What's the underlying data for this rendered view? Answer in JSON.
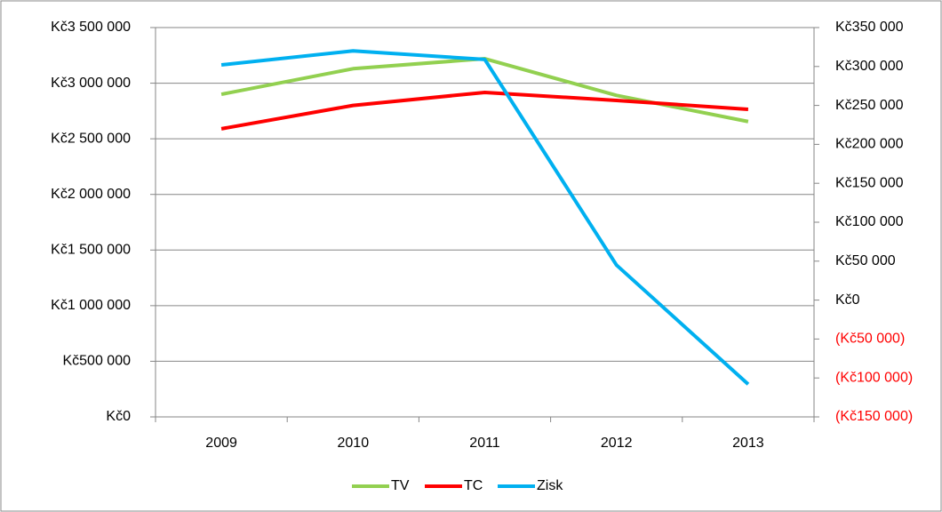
{
  "chart_data": {
    "type": "line",
    "categories": [
      "2009",
      "2010",
      "2011",
      "2012",
      "2013"
    ],
    "series": [
      {
        "name": "TV",
        "color": "#92d050",
        "values": [
          2900000,
          3130000,
          3220000,
          2890000,
          2655000
        ]
      },
      {
        "name": "TC",
        "color": "#ff0000",
        "values": [
          2590000,
          2800000,
          2917000,
          2845000,
          2765000
        ]
      },
      {
        "name": "Zisk",
        "color": "#00b0f0",
        "axis": "y2",
        "values": [
          302000,
          320000,
          309000,
          45000,
          -108000
        ]
      }
    ],
    "ylim": [
      0,
      3500000
    ],
    "yticks": [
      {
        "value": 0,
        "label": "Kč0"
      },
      {
        "value": 500000,
        "label": "Kč500 000"
      },
      {
        "value": 1000000,
        "label": "Kč1 000 000"
      },
      {
        "value": 1500000,
        "label": "Kč1 500 000"
      },
      {
        "value": 2000000,
        "label": "Kč2 000 000"
      },
      {
        "value": 2500000,
        "label": "Kč2 500 000"
      },
      {
        "value": 3000000,
        "label": "Kč3 000 000"
      },
      {
        "value": 3500000,
        "label": "Kč3 500 000"
      }
    ],
    "y2lim": [
      -150000,
      350000
    ],
    "y2ticks": [
      {
        "value": -150000,
        "label": "(Kč150 000)"
      },
      {
        "value": -100000,
        "label": "(Kč100 000)"
      },
      {
        "value": -50000,
        "label": "(Kč50 000)"
      },
      {
        "value": 0,
        "label": "Kč0"
      },
      {
        "value": 50000,
        "label": "Kč50 000"
      },
      {
        "value": 100000,
        "label": "Kč100 000"
      },
      {
        "value": 150000,
        "label": "Kč150 000"
      },
      {
        "value": 200000,
        "label": "Kč200 000"
      },
      {
        "value": 250000,
        "label": "Kč250 000"
      },
      {
        "value": 300000,
        "label": "Kč300 000"
      },
      {
        "value": 350000,
        "label": "Kč350 000"
      }
    ],
    "y2_negative_color": "#ff0000",
    "grid": true,
    "legend": "bottom"
  }
}
